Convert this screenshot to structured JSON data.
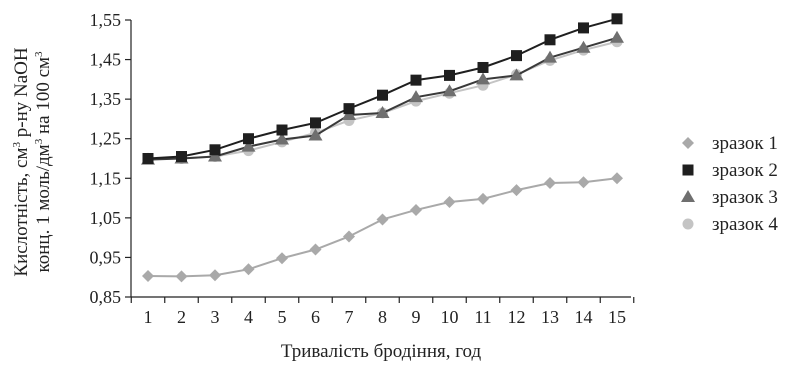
{
  "chart_data": {
    "type": "line",
    "x": [
      1,
      2,
      3,
      4,
      5,
      6,
      7,
      8,
      9,
      10,
      11,
      12,
      13,
      14,
      15
    ],
    "x_ticks": [
      "1",
      "2",
      "3",
      "4",
      "5",
      "6",
      "7",
      "8",
      "9",
      "10",
      "11",
      "12",
      "13",
      "14",
      "15"
    ],
    "y_ticks": [
      "0,85",
      "0,95",
      "1,05",
      "1,15",
      "1,25",
      "1,35",
      "1,45",
      "1,55"
    ],
    "ylim": [
      0.85,
      1.55
    ],
    "grid": false,
    "legend_position": "right",
    "xlabel": "Тривалість бродіння, год",
    "ylabel_line1": {
      "a": "Кислотність, см",
      "sup": "3",
      "b": " р-ну NaOH"
    },
    "ylabel_line2": {
      "a": "конц. 1 моль/дм",
      "sup1": "3",
      "b": " на 100 см",
      "sup2": "3"
    },
    "series": [
      {
        "name": "зразок 1",
        "marker": "diamond",
        "marker_color": "#a9a9a9",
        "line_color": "#a9a9a9",
        "values": [
          0.903,
          0.902,
          0.905,
          0.92,
          0.948,
          0.97,
          1.003,
          1.046,
          1.07,
          1.09,
          1.098,
          1.12,
          1.138,
          1.14,
          1.15
        ]
      },
      {
        "name": "зразок 2",
        "marker": "square",
        "marker_color": "#1f1f1f",
        "line_color": "#1f1f1f",
        "values": [
          1.2,
          1.205,
          1.222,
          1.25,
          1.272,
          1.29,
          1.326,
          1.36,
          1.398,
          1.41,
          1.43,
          1.46,
          1.5,
          1.53,
          1.553
        ]
      },
      {
        "name": "зразок 3",
        "marker": "triangle",
        "marker_color": "#6f6f6f",
        "line_color": "#3a3a3a",
        "values": [
          1.197,
          1.2,
          1.205,
          1.23,
          1.248,
          1.258,
          1.31,
          1.315,
          1.355,
          1.37,
          1.4,
          1.41,
          1.455,
          1.48,
          1.505
        ]
      },
      {
        "name": "зразок 4",
        "marker": "circle",
        "marker_color": "#c4c4c4",
        "line_color": "#c4c4c4",
        "values": [
          1.2,
          1.2,
          1.205,
          1.22,
          1.242,
          1.265,
          1.296,
          1.315,
          1.345,
          1.365,
          1.385,
          1.412,
          1.448,
          1.474,
          1.495
        ]
      }
    ]
  }
}
